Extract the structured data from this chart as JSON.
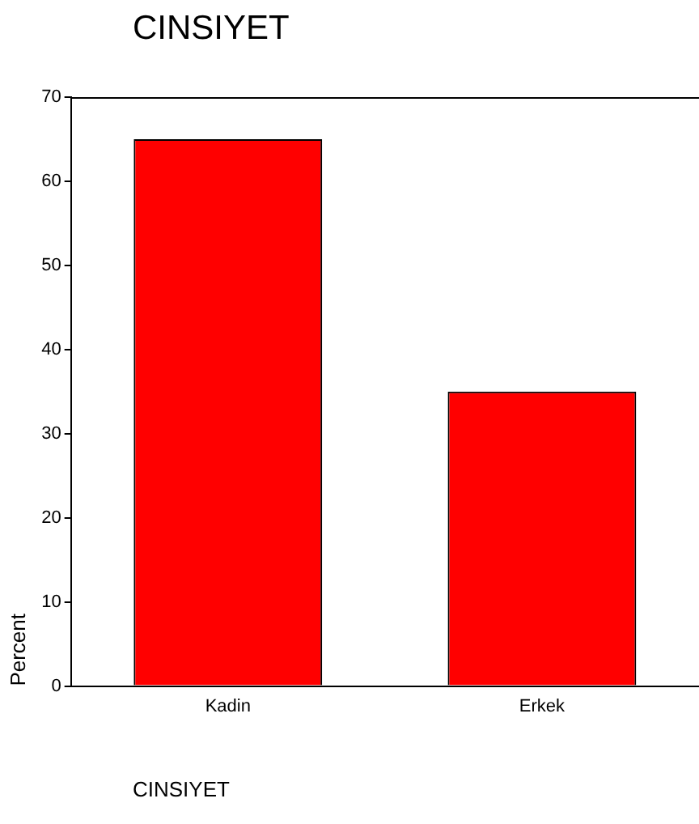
{
  "chart_data": {
    "type": "bar",
    "title": "CINSIYET",
    "xlabel": "CINSIYET",
    "ylabel": "Percent",
    "categories": [
      "Kadin",
      "Erkek"
    ],
    "values": [
      65,
      35
    ],
    "color": "#ff0000",
    "ylim": [
      0,
      70
    ],
    "yticks": [
      0,
      10,
      20,
      30,
      40,
      50,
      60,
      70
    ],
    "grid": false,
    "legend": false
  }
}
